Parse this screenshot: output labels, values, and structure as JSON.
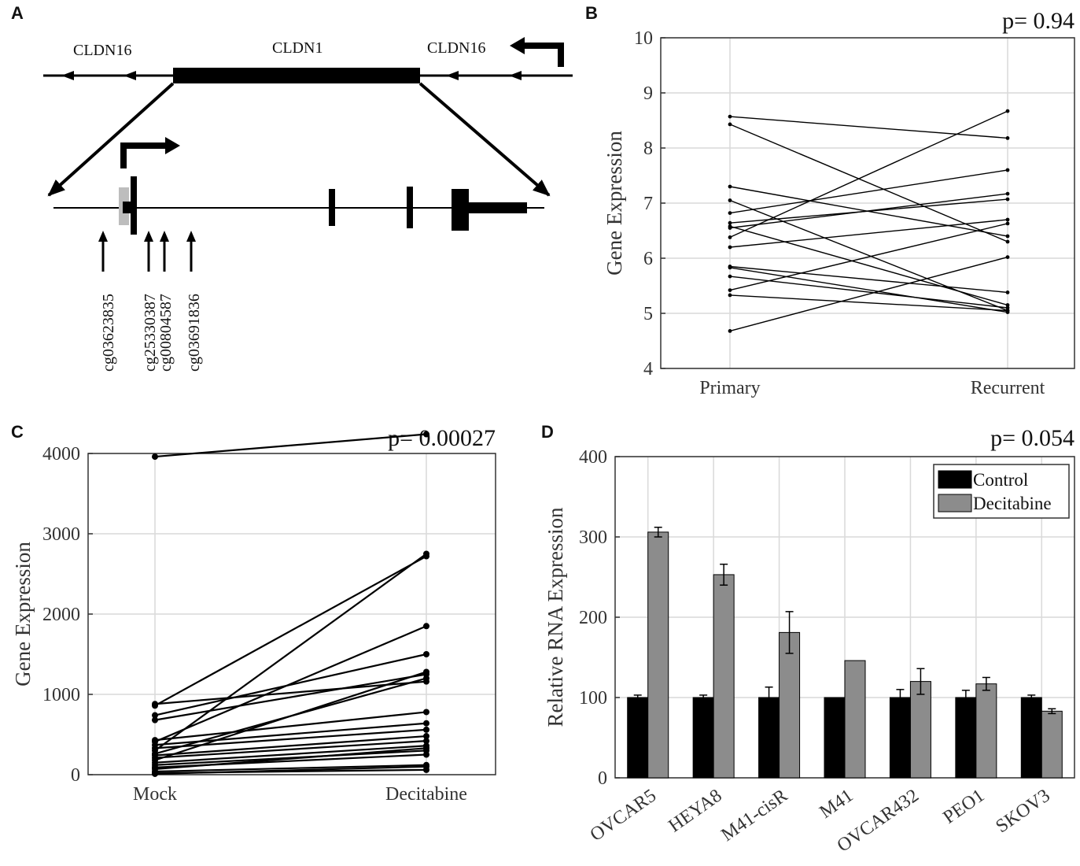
{
  "panels": {
    "a": {
      "letter": "A",
      "genes": {
        "left": "CLDN16",
        "center": "CLDN1",
        "right": "CLDN16"
      },
      "probes": [
        "cg03623835",
        "cg25330387",
        "cg00804587",
        "cg03691836"
      ]
    },
    "b": {
      "letter": "B",
      "pvalue": "p= 0.94"
    },
    "c": {
      "letter": "C",
      "pvalue": "p= 0.00027"
    },
    "d": {
      "letter": "D",
      "pvalue": "p= 0.054"
    }
  },
  "chart_data": [
    {
      "id": "B",
      "type": "line",
      "title": "",
      "xlabel": "",
      "ylabel": "Gene Expression",
      "categories": [
        "Primary",
        "Recurrent"
      ],
      "ylim": [
        4,
        10
      ],
      "yticks": [
        4,
        5,
        6,
        7,
        8,
        9,
        10
      ],
      "annotation": "p= 0.94",
      "grid": true,
      "pairs": [
        [
          8.57,
          8.18
        ],
        [
          8.43,
          6.3
        ],
        [
          7.3,
          6.4
        ],
        [
          7.05,
          5.05
        ],
        [
          6.82,
          7.6
        ],
        [
          6.64,
          7.07
        ],
        [
          6.58,
          5.15
        ],
        [
          6.55,
          7.17
        ],
        [
          6.38,
          8.67
        ],
        [
          6.2,
          6.7
        ],
        [
          5.85,
          5.38
        ],
        [
          5.83,
          5.02
        ],
        [
          5.67,
          5.1
        ],
        [
          5.42,
          6.63
        ],
        [
          5.33,
          5.05
        ],
        [
          4.68,
          6.02
        ]
      ]
    },
    {
      "id": "C",
      "type": "line",
      "title": "",
      "xlabel": "",
      "ylabel": "Gene Expression",
      "categories": [
        "Mock",
        "Decitabine"
      ],
      "ylim": [
        0,
        4000
      ],
      "yticks": [
        0,
        1000,
        2000,
        3000,
        4000
      ],
      "annotation": "p= 0.00027",
      "grid": true,
      "pairs": [
        [
          3960,
          4240
        ],
        [
          880,
          1160
        ],
        [
          860,
          2720
        ],
        [
          740,
          1500
        ],
        [
          680,
          1250
        ],
        [
          430,
          780
        ],
        [
          410,
          1850
        ],
        [
          370,
          640
        ],
        [
          330,
          560
        ],
        [
          300,
          2750
        ],
        [
          260,
          1200
        ],
        [
          240,
          480
        ],
        [
          210,
          420
        ],
        [
          180,
          1280
        ],
        [
          150,
          360
        ],
        [
          120,
          300
        ],
        [
          90,
          250
        ],
        [
          70,
          330
        ],
        [
          40,
          120
        ],
        [
          20,
          60
        ],
        [
          10,
          100
        ]
      ]
    },
    {
      "id": "D",
      "type": "bar",
      "title": "",
      "xlabel": "",
      "ylabel": "Relative RNA Expression",
      "categories": [
        "OVCAR5",
        "HEYA8",
        "M41-cisR",
        "M41",
        "OVCAR432",
        "PEO1",
        "SKOV3"
      ],
      "ylim": [
        0,
        400
      ],
      "yticks": [
        0,
        100,
        200,
        300,
        400
      ],
      "annotation": "p= 0.054",
      "grid": true,
      "legend_position": "top-right",
      "series": [
        {
          "name": "Control",
          "color": "#000000",
          "values": [
            100,
            100,
            100,
            100,
            100,
            100,
            100
          ],
          "errors": [
            3,
            3,
            13,
            1,
            10,
            9,
            3
          ]
        },
        {
          "name": "Decitabine",
          "color": "#8c8c8c",
          "values": [
            306,
            253,
            181,
            146,
            120,
            117,
            83
          ],
          "errors": [
            6,
            13,
            26,
            1,
            16,
            8,
            3
          ]
        }
      ]
    }
  ]
}
